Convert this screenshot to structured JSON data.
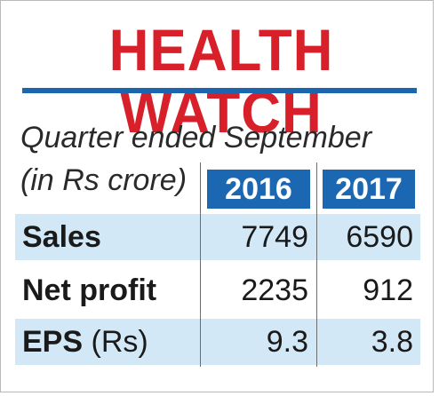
{
  "header": {
    "title": "HEALTH WATCH"
  },
  "caption": {
    "period": "Quarter ended September",
    "unit": "(in Rs crore)"
  },
  "columns": [
    "2016",
    "2017"
  ],
  "rows": [
    {
      "label": "Sales",
      "unit": "",
      "v2016": "7749",
      "v2017": "6590"
    },
    {
      "label": "Net profit",
      "unit": "",
      "v2016": "2235",
      "v2017": "912"
    },
    {
      "label": "EPS",
      "unit": "(Rs)",
      "v2016": "9.3",
      "v2017": "3.8"
    }
  ],
  "colors": {
    "title": "#d7202a",
    "accent": "#1c66b0",
    "row_shade": "#d2e8f6"
  }
}
